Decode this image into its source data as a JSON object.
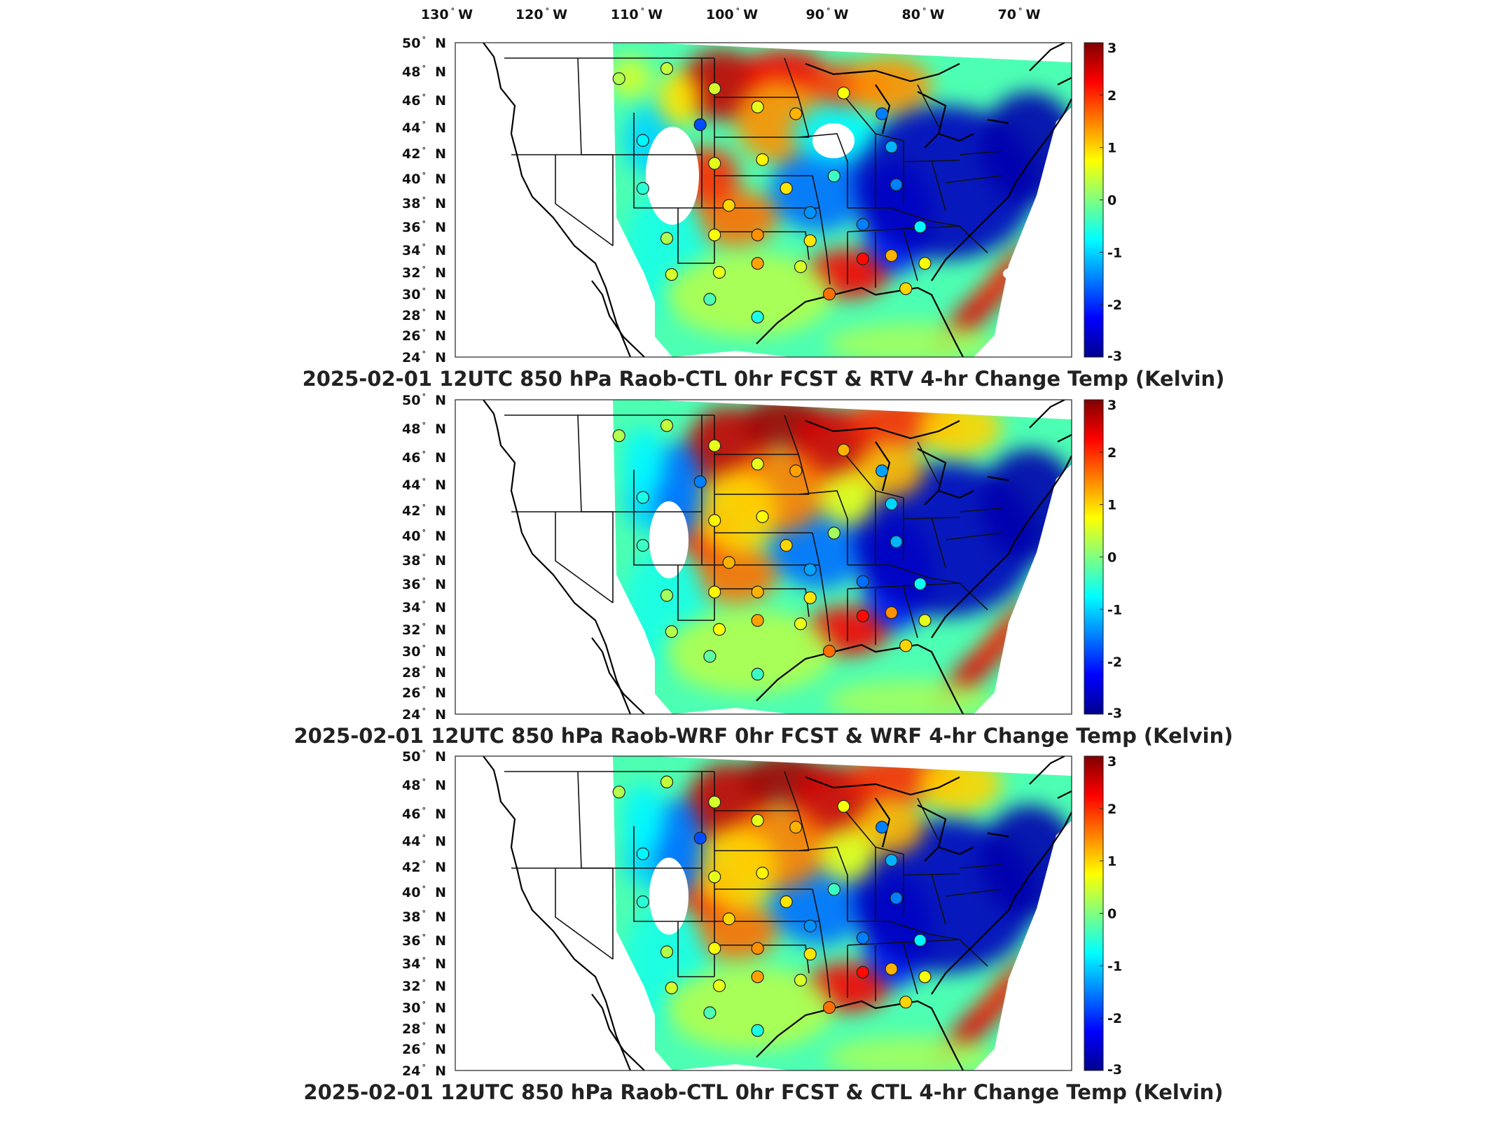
{
  "top_lon_labels": [
    "130",
    "120",
    "110",
    "100",
    "90",
    "80",
    "70"
  ],
  "lon_suffix": "W",
  "lat_suffix": "N",
  "lat_labels": [
    "50",
    "48",
    "46",
    "44",
    "42",
    "40",
    "38",
    "36",
    "34",
    "32",
    "30",
    "28",
    "26",
    "24"
  ],
  "colorbar": {
    "ticks": [
      "3",
      "2",
      "1",
      "0",
      "-1",
      "-2",
      "-3"
    ],
    "range": [
      -3,
      3
    ],
    "colormap": [
      "#00008f",
      "#0000ff",
      "#0080ff",
      "#00ffff",
      "#80ff80",
      "#ffff00",
      "#ff8000",
      "#ff0000",
      "#800000"
    ]
  },
  "panels": [
    {
      "title": "2025-02-01 12UTC 850 hPa Raob-CTL 0hr FCST & RTV 4-hr Change Temp (Kelvin)",
      "field": "RTV",
      "stations": [
        {
          "lon": -112.0,
          "lat": 47.5,
          "v": 0.3
        },
        {
          "lon": -107.0,
          "lat": 48.2,
          "v": 0.4
        },
        {
          "lon": -102.0,
          "lat": 46.8,
          "v": 0.5
        },
        {
          "lon": -103.5,
          "lat": 44.2,
          "v": -1.8
        },
        {
          "lon": -109.5,
          "lat": 43.0,
          "v": -0.8
        },
        {
          "lon": -97.5,
          "lat": 45.5,
          "v": 0.6
        },
        {
          "lon": -93.5,
          "lat": 45.0,
          "v": 1.2
        },
        {
          "lon": -88.5,
          "lat": 46.5,
          "v": 0.7
        },
        {
          "lon": -84.5,
          "lat": 45.0,
          "v": -1.5
        },
        {
          "lon": -83.5,
          "lat": 42.5,
          "v": -1.2
        },
        {
          "lon": -102.0,
          "lat": 41.2,
          "v": 0.6
        },
        {
          "lon": -97.0,
          "lat": 41.5,
          "v": 0.8
        },
        {
          "lon": -94.5,
          "lat": 39.2,
          "v": 0.9
        },
        {
          "lon": -89.5,
          "lat": 40.2,
          "v": -0.4
        },
        {
          "lon": -83.0,
          "lat": 39.5,
          "v": -1.5
        },
        {
          "lon": -109.5,
          "lat": 39.2,
          "v": -0.5
        },
        {
          "lon": -100.5,
          "lat": 37.8,
          "v": 1.0
        },
        {
          "lon": -92.0,
          "lat": 37.2,
          "v": -1.4
        },
        {
          "lon": -86.5,
          "lat": 36.2,
          "v": -1.5
        },
        {
          "lon": -80.5,
          "lat": 36.0,
          "v": -0.8
        },
        {
          "lon": -107.0,
          "lat": 35.0,
          "v": 0.3
        },
        {
          "lon": -102.0,
          "lat": 35.3,
          "v": 0.7
        },
        {
          "lon": -97.5,
          "lat": 35.3,
          "v": 1.4
        },
        {
          "lon": -92.0,
          "lat": 34.8,
          "v": 0.9
        },
        {
          "lon": -86.5,
          "lat": 33.2,
          "v": 2.2
        },
        {
          "lon": -83.5,
          "lat": 33.5,
          "v": 1.2
        },
        {
          "lon": -80.0,
          "lat": 32.8,
          "v": 0.7
        },
        {
          "lon": -106.5,
          "lat": 31.8,
          "v": 0.5
        },
        {
          "lon": -101.5,
          "lat": 32.0,
          "v": 0.6
        },
        {
          "lon": -97.5,
          "lat": 32.8,
          "v": 1.3
        },
        {
          "lon": -93.0,
          "lat": 32.5,
          "v": 0.5
        },
        {
          "lon": -90.0,
          "lat": 30.0,
          "v": 1.6
        },
        {
          "lon": -82.0,
          "lat": 30.5,
          "v": 1.0
        },
        {
          "lon": -97.5,
          "lat": 27.8,
          "v": -0.6
        },
        {
          "lon": -102.5,
          "lat": 29.5,
          "v": -0.3
        }
      ]
    },
    {
      "title": "2025-02-01 12UTC 850 hPa Raob-WRF 0hr FCST & WRF 4-hr Change Temp (Kelvin)",
      "field": "WRF",
      "stations": [
        {
          "lon": -112.0,
          "lat": 47.5,
          "v": 0.3
        },
        {
          "lon": -107.0,
          "lat": 48.2,
          "v": 0.4
        },
        {
          "lon": -102.0,
          "lat": 46.8,
          "v": 0.6
        },
        {
          "lon": -103.5,
          "lat": 44.2,
          "v": -1.5
        },
        {
          "lon": -109.5,
          "lat": 43.0,
          "v": -0.6
        },
        {
          "lon": -97.5,
          "lat": 45.5,
          "v": 0.6
        },
        {
          "lon": -93.5,
          "lat": 45.0,
          "v": 1.3
        },
        {
          "lon": -88.5,
          "lat": 46.5,
          "v": 1.2
        },
        {
          "lon": -84.5,
          "lat": 45.0,
          "v": -1.3
        },
        {
          "lon": -83.5,
          "lat": 42.5,
          "v": -1.0
        },
        {
          "lon": -102.0,
          "lat": 41.2,
          "v": 0.8
        },
        {
          "lon": -97.0,
          "lat": 41.5,
          "v": 0.7
        },
        {
          "lon": -94.5,
          "lat": 39.2,
          "v": 1.0
        },
        {
          "lon": -89.5,
          "lat": 40.2,
          "v": 0.2
        },
        {
          "lon": -83.0,
          "lat": 39.5,
          "v": -1.2
        },
        {
          "lon": -109.5,
          "lat": 39.2,
          "v": -0.4
        },
        {
          "lon": -100.5,
          "lat": 37.8,
          "v": 1.2
        },
        {
          "lon": -92.0,
          "lat": 37.2,
          "v": -1.3
        },
        {
          "lon": -86.5,
          "lat": 36.2,
          "v": -1.6
        },
        {
          "lon": -80.5,
          "lat": 36.0,
          "v": -0.7
        },
        {
          "lon": -107.0,
          "lat": 35.0,
          "v": 0.2
        },
        {
          "lon": -102.0,
          "lat": 35.3,
          "v": 0.8
        },
        {
          "lon": -97.5,
          "lat": 35.3,
          "v": 1.2
        },
        {
          "lon": -92.0,
          "lat": 34.8,
          "v": 0.9
        },
        {
          "lon": -86.5,
          "lat": 33.2,
          "v": 2.2
        },
        {
          "lon": -83.5,
          "lat": 33.5,
          "v": 1.4
        },
        {
          "lon": -80.0,
          "lat": 32.8,
          "v": 0.6
        },
        {
          "lon": -106.5,
          "lat": 31.8,
          "v": 0.3
        },
        {
          "lon": -101.5,
          "lat": 32.0,
          "v": 0.7
        },
        {
          "lon": -97.5,
          "lat": 32.8,
          "v": 1.3
        },
        {
          "lon": -93.0,
          "lat": 32.5,
          "v": 0.6
        },
        {
          "lon": -90.0,
          "lat": 30.0,
          "v": 1.6
        },
        {
          "lon": -82.0,
          "lat": 30.5,
          "v": 1.0
        },
        {
          "lon": -97.5,
          "lat": 27.8,
          "v": -0.4
        },
        {
          "lon": -102.5,
          "lat": 29.5,
          "v": -0.2
        }
      ]
    },
    {
      "title": "2025-02-01 12UTC 850 hPa Raob-CTL 0hr FCST & CTL 4-hr Change Temp (Kelvin)",
      "field": "CTL",
      "stations": [
        {
          "lon": -112.0,
          "lat": 47.5,
          "v": 0.3
        },
        {
          "lon": -107.0,
          "lat": 48.2,
          "v": 0.4
        },
        {
          "lon": -102.0,
          "lat": 46.8,
          "v": 0.5
        },
        {
          "lon": -103.5,
          "lat": 44.2,
          "v": -1.8
        },
        {
          "lon": -109.5,
          "lat": 43.0,
          "v": -0.8
        },
        {
          "lon": -97.5,
          "lat": 45.5,
          "v": 0.6
        },
        {
          "lon": -93.5,
          "lat": 45.0,
          "v": 1.2
        },
        {
          "lon": -88.5,
          "lat": 46.5,
          "v": 0.7
        },
        {
          "lon": -84.5,
          "lat": 45.0,
          "v": -1.5
        },
        {
          "lon": -83.5,
          "lat": 42.5,
          "v": -1.2
        },
        {
          "lon": -102.0,
          "lat": 41.2,
          "v": 0.6
        },
        {
          "lon": -97.0,
          "lat": 41.5,
          "v": 0.8
        },
        {
          "lon": -94.5,
          "lat": 39.2,
          "v": 0.9
        },
        {
          "lon": -89.5,
          "lat": 40.2,
          "v": -0.4
        },
        {
          "lon": -83.0,
          "lat": 39.5,
          "v": -1.5
        },
        {
          "lon": -109.5,
          "lat": 39.2,
          "v": -0.5
        },
        {
          "lon": -100.5,
          "lat": 37.8,
          "v": 1.0
        },
        {
          "lon": -92.0,
          "lat": 37.2,
          "v": -1.4
        },
        {
          "lon": -86.5,
          "lat": 36.2,
          "v": -1.5
        },
        {
          "lon": -80.5,
          "lat": 36.0,
          "v": -0.8
        },
        {
          "lon": -107.0,
          "lat": 35.0,
          "v": 0.3
        },
        {
          "lon": -102.0,
          "lat": 35.3,
          "v": 0.7
        },
        {
          "lon": -97.5,
          "lat": 35.3,
          "v": 1.4
        },
        {
          "lon": -92.0,
          "lat": 34.8,
          "v": 0.9
        },
        {
          "lon": -86.5,
          "lat": 33.2,
          "v": 2.2
        },
        {
          "lon": -83.5,
          "lat": 33.5,
          "v": 1.2
        },
        {
          "lon": -80.0,
          "lat": 32.8,
          "v": 0.7
        },
        {
          "lon": -106.5,
          "lat": 31.8,
          "v": 0.5
        },
        {
          "lon": -101.5,
          "lat": 32.0,
          "v": 0.6
        },
        {
          "lon": -97.5,
          "lat": 32.8,
          "v": 1.3
        },
        {
          "lon": -93.0,
          "lat": 32.5,
          "v": 0.5
        },
        {
          "lon": -90.0,
          "lat": 30.0,
          "v": 1.6
        },
        {
          "lon": -82.0,
          "lat": 30.5,
          "v": 1.0
        },
        {
          "lon": -97.5,
          "lat": 27.8,
          "v": -0.6
        },
        {
          "lon": -102.5,
          "lat": 29.5,
          "v": -0.3
        }
      ]
    }
  ]
}
